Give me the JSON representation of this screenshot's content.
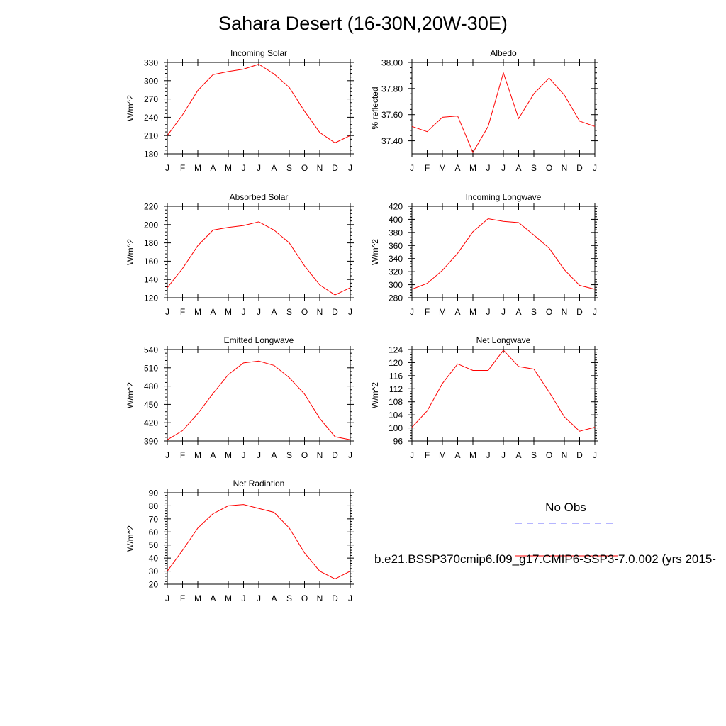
{
  "page": {
    "title": "Sahara Desert (16-30N,20W-30E)"
  },
  "legend": {
    "obs_label": "No Obs",
    "obs_color": "#6b6bff",
    "model_label": "b.e21.BSSP370cmip6.f09_g17.CMIP6-SSP3-7.0.002 (yrs 2015-",
    "model_color": "#ff0000"
  },
  "chart_data": [
    {
      "type": "line",
      "title": "Incoming Solar",
      "ylabel": "W/m^2",
      "x": [
        "J",
        "F",
        "M",
        "A",
        "M",
        "J",
        "J",
        "A",
        "S",
        "O",
        "N",
        "D",
        "J"
      ],
      "ylim": [
        180,
        330
      ],
      "yticks": [
        "180",
        "210",
        "240",
        "270",
        "300",
        "330"
      ],
      "series": [
        {
          "values": [
            210,
            244,
            284,
            310,
            315,
            319,
            327,
            311,
            289,
            250,
            215,
            198,
            210
          ],
          "color": "#ff0000"
        }
      ]
    },
    {
      "type": "line",
      "title": "Albedo",
      "ylabel": "% reflected",
      "x": [
        "J",
        "F",
        "M",
        "A",
        "M",
        "J",
        "J",
        "A",
        "S",
        "O",
        "N",
        "D",
        "J"
      ],
      "ylim": [
        37.3,
        38.0
      ],
      "yticks": [
        "37.40",
        "37.60",
        "37.80",
        "38.00"
      ],
      "series": [
        {
          "values": [
            37.51,
            37.47,
            37.58,
            37.59,
            37.31,
            37.51,
            37.92,
            37.57,
            37.76,
            37.88,
            37.75,
            37.55,
            37.51
          ],
          "color": "#ff0000"
        }
      ]
    },
    {
      "type": "line",
      "title": "Absorbed Solar",
      "ylabel": "W/m^2",
      "x": [
        "J",
        "F",
        "M",
        "A",
        "M",
        "J",
        "J",
        "A",
        "S",
        "O",
        "N",
        "D",
        "J"
      ],
      "ylim": [
        120,
        220
      ],
      "yticks": [
        "120",
        "140",
        "160",
        "180",
        "200",
        "220"
      ],
      "series": [
        {
          "values": [
            131,
            152,
            177,
            194,
            197,
            199,
            203,
            194,
            180,
            155,
            134,
            123,
            131
          ],
          "color": "#ff0000"
        }
      ]
    },
    {
      "type": "line",
      "title": "Incoming Longwave",
      "ylabel": "W/m^2",
      "x": [
        "J",
        "F",
        "M",
        "A",
        "M",
        "J",
        "J",
        "A",
        "S",
        "O",
        "N",
        "D",
        "J"
      ],
      "ylim": [
        280,
        420
      ],
      "yticks": [
        "280",
        "300",
        "320",
        "340",
        "360",
        "380",
        "400",
        "420"
      ],
      "series": [
        {
          "values": [
            293,
            302,
            322,
            348,
            381,
            401,
            397,
            395,
            376,
            356,
            323,
            299,
            293
          ],
          "color": "#ff0000"
        }
      ]
    },
    {
      "type": "line",
      "title": "Emitted Longwave",
      "ylabel": "W/m^2",
      "x": [
        "J",
        "F",
        "M",
        "A",
        "M",
        "J",
        "J",
        "A",
        "S",
        "O",
        "N",
        "D",
        "J"
      ],
      "ylim": [
        390,
        540
      ],
      "yticks": [
        "390",
        "420",
        "450",
        "480",
        "510",
        "540"
      ],
      "series": [
        {
          "values": [
            392,
            407,
            435,
            468,
            499,
            518,
            521,
            514,
            494,
            467,
            427,
            397,
            392
          ],
          "color": "#ff0000"
        }
      ]
    },
    {
      "type": "line",
      "title": "Net Longwave",
      "ylabel": "W/m^2",
      "x": [
        "J",
        "F",
        "M",
        "A",
        "M",
        "J",
        "J",
        "A",
        "S",
        "O",
        "N",
        "D",
        "J"
      ],
      "ylim": [
        96,
        124
      ],
      "yticks": [
        "96",
        "100",
        "104",
        "108",
        "112",
        "116",
        "120",
        "124"
      ],
      "series": [
        {
          "values": [
            100.2,
            105.2,
            113.6,
            119.6,
            117.6,
            117.6,
            123.8,
            118.8,
            118.0,
            111.0,
            103.4,
            99.0,
            100.2
          ],
          "color": "#ff0000"
        }
      ]
    },
    {
      "type": "line",
      "title": "Net Radiation",
      "ylabel": "W/m^2",
      "x": [
        "J",
        "F",
        "M",
        "A",
        "M",
        "J",
        "J",
        "A",
        "S",
        "O",
        "N",
        "D",
        "J"
      ],
      "ylim": [
        20,
        90
      ],
      "yticks": [
        "20",
        "30",
        "40",
        "50",
        "60",
        "70",
        "80",
        "90"
      ],
      "series": [
        {
          "values": [
            30,
            46,
            63,
            74,
            80,
            81,
            78,
            75,
            63,
            44,
            30,
            24,
            30
          ],
          "color": "#ff0000"
        }
      ]
    }
  ]
}
